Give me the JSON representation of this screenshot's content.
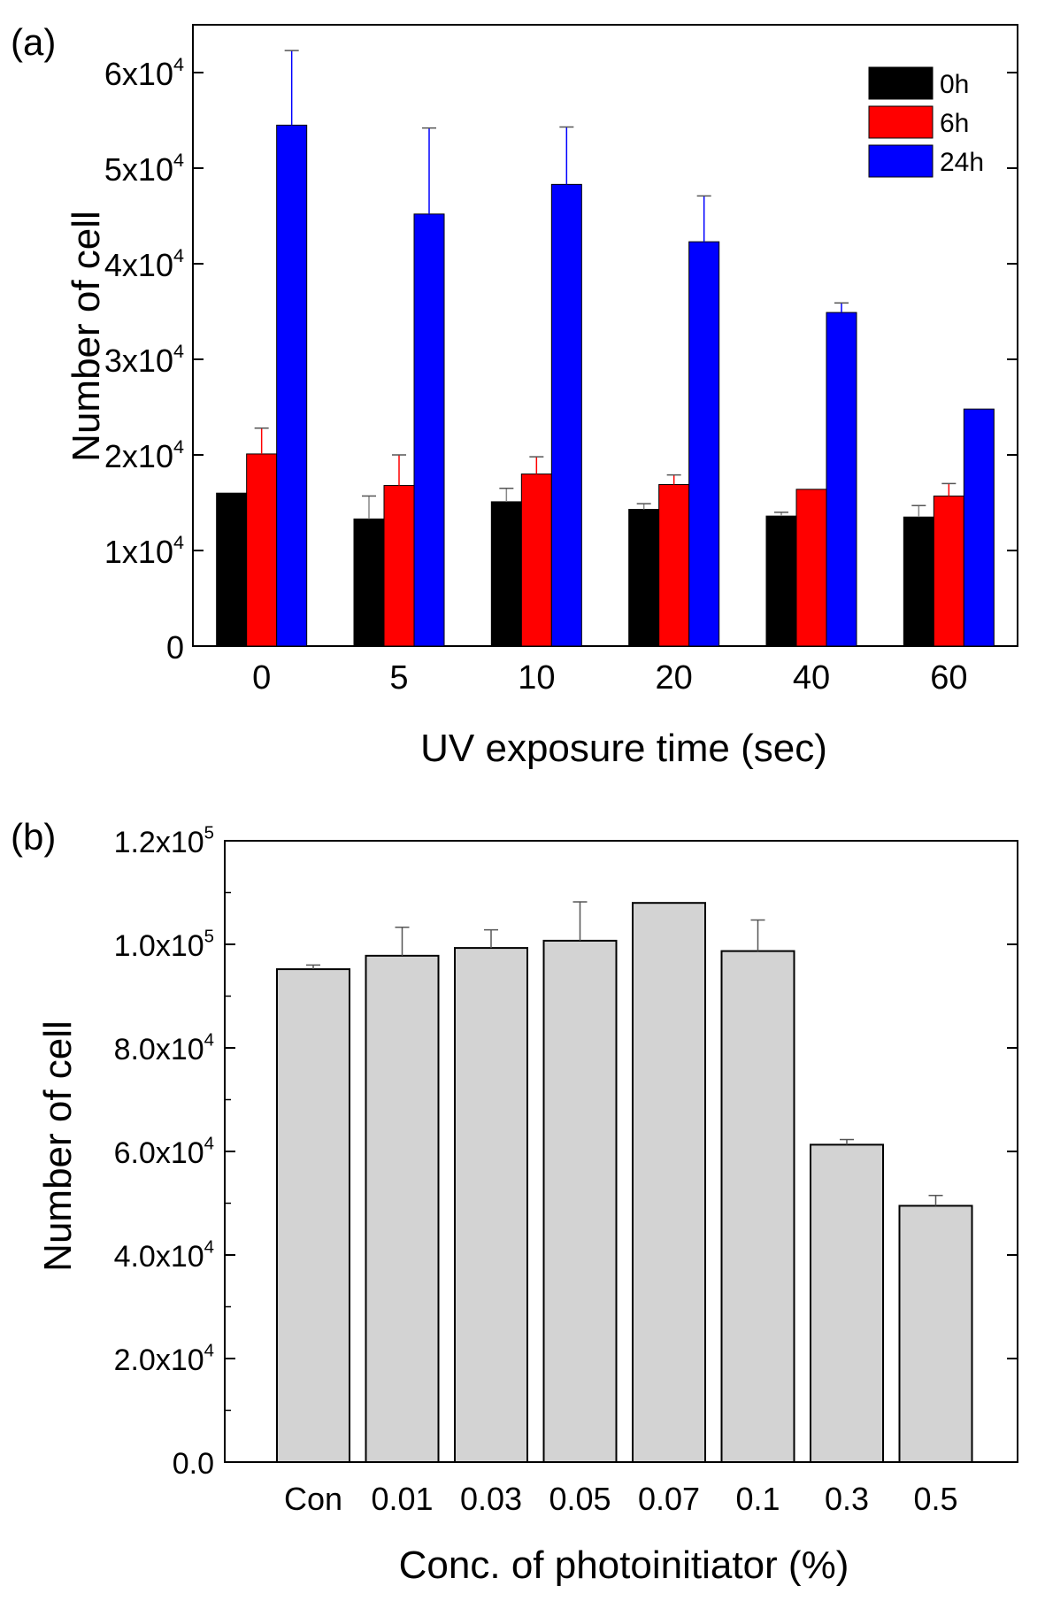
{
  "chart_data": [
    {
      "type": "bar",
      "panel_label": "(a)",
      "xlabel": "UV exposure time (sec)",
      "ylabel": "Number of cell",
      "categories": [
        "0",
        "5",
        "10",
        "20",
        "40",
        "60"
      ],
      "series": [
        {
          "name": "0h",
          "color": "#000000",
          "values": [
            16000,
            13300,
            15100,
            14300,
            13600,
            13500
          ],
          "errors": [
            0,
            2400,
            1400,
            600,
            400,
            1200
          ]
        },
        {
          "name": "6h",
          "color": "#ff0000",
          "values": [
            20100,
            16800,
            18000,
            16900,
            16400,
            15700
          ],
          "errors": [
            2700,
            3200,
            1800,
            1000,
            0,
            1300
          ]
        },
        {
          "name": "24h",
          "color": "#0000ff",
          "values": [
            54500,
            45200,
            48300,
            42300,
            34900,
            24800
          ],
          "errors": [
            7800,
            9000,
            6000,
            4800,
            1000,
            0
          ]
        }
      ],
      "ylim": [
        0,
        65000
      ],
      "yticks": [
        0,
        10000,
        20000,
        30000,
        40000,
        50000,
        60000
      ],
      "ytick_labels": [
        {
          "base": "0",
          "exp": ""
        },
        {
          "base": "1x10",
          "exp": "4"
        },
        {
          "base": "2x10",
          "exp": "4"
        },
        {
          "base": "3x10",
          "exp": "4"
        },
        {
          "base": "4x10",
          "exp": "4"
        },
        {
          "base": "5x10",
          "exp": "4"
        },
        {
          "base": "6x10",
          "exp": "4"
        }
      ],
      "legend_position": "top-right",
      "grid": false
    },
    {
      "type": "bar",
      "panel_label": "(b)",
      "xlabel": "Conc. of photoinitiator (%)",
      "ylabel": "Number of cell",
      "categories": [
        "Con",
        "0.01",
        "0.03",
        "0.05",
        "0.07",
        "0.1",
        "0.3",
        "0.5"
      ],
      "series": [
        {
          "color": "#d3d3d3",
          "values": [
            95200,
            97800,
            99300,
            100700,
            108000,
            98700,
            61300,
            49500
          ],
          "errors": [
            800,
            5500,
            3500,
            7500,
            0,
            6000,
            1000,
            2000
          ]
        }
      ],
      "ylim": [
        0,
        120000
      ],
      "yticks": [
        0,
        20000,
        40000,
        60000,
        80000,
        100000,
        120000
      ],
      "ytick_labels": [
        {
          "base": "0.0",
          "exp": ""
        },
        {
          "base": "2.0x10",
          "exp": "4"
        },
        {
          "base": "4.0x10",
          "exp": "4"
        },
        {
          "base": "6.0x10",
          "exp": "4"
        },
        {
          "base": "8.0x10",
          "exp": "4"
        },
        {
          "base": "1.0x10",
          "exp": "5"
        },
        {
          "base": "1.2x10",
          "exp": "5"
        }
      ],
      "grid": false
    }
  ]
}
